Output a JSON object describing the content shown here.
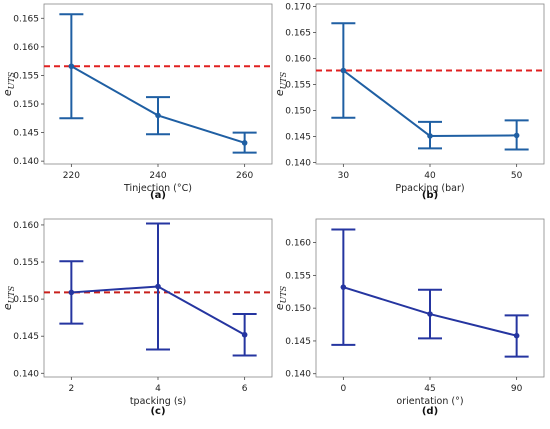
{
  "chart_data": [
    {
      "type": "line",
      "panel_label": "(a)",
      "xlabel": "Tinjection (°C)",
      "ylabel_main": "e",
      "ylabel_sub": "UTS",
      "categories": [
        "220",
        "240",
        "260"
      ],
      "values": [
        0.1566,
        0.148,
        0.1432
      ],
      "err_low": [
        0.1475,
        0.1447,
        0.1415
      ],
      "err_high": [
        0.1657,
        0.1512,
        0.145
      ],
      "ylim": [
        0.1395,
        0.1675
      ],
      "yticks": [
        "0.140",
        "0.145",
        "0.150",
        "0.155",
        "0.160",
        "0.165"
      ],
      "reference_line": 0.1566,
      "color": "#1f5fa3",
      "ref_color": "#e02020",
      "grid": false
    },
    {
      "type": "line",
      "panel_label": "(b)",
      "xlabel": "Ppacking (bar)",
      "ylabel_main": "e",
      "ylabel_sub": "UTS",
      "categories": [
        "30",
        "40",
        "50"
      ],
      "values": [
        0.1577,
        0.1451,
        0.1452
      ],
      "err_low": [
        0.1486,
        0.1427,
        0.1425
      ],
      "err_high": [
        0.1668,
        0.1478,
        0.1481
      ],
      "ylim": [
        0.1397,
        0.1705
      ],
      "yticks": [
        "0.140",
        "0.145",
        "0.150",
        "0.155",
        "0.160",
        "0.165",
        "0.170"
      ],
      "reference_line": 0.1577,
      "color": "#1f5fa3",
      "ref_color": "#e02020",
      "grid": false
    },
    {
      "type": "line",
      "panel_label": "(c)",
      "xlabel": "tpacking (s)",
      "ylabel_main": "e",
      "ylabel_sub": "UTS",
      "categories": [
        "2",
        "4",
        "6"
      ],
      "values": [
        0.1509,
        0.1517,
        0.1452
      ],
      "err_low": [
        0.1467,
        0.1432,
        0.1424
      ],
      "err_high": [
        0.1551,
        0.1602,
        0.148
      ],
      "ylim": [
        0.1395,
        0.1608
      ],
      "yticks": [
        "0.140",
        "0.145",
        "0.150",
        "0.155",
        "0.160"
      ],
      "reference_line": 0.1509,
      "color": "#2535a0",
      "ref_color": "#c8201c",
      "grid": false
    },
    {
      "type": "line",
      "panel_label": "(d)",
      "xlabel": "orientation (°)",
      "ylabel_main": "e",
      "ylabel_sub": "UTS",
      "categories": [
        "0",
        "45",
        "90"
      ],
      "values": [
        0.1532,
        0.1491,
        0.1458
      ],
      "err_low": [
        0.1444,
        0.1454,
        0.1426
      ],
      "err_high": [
        0.162,
        0.1528,
        0.1489
      ],
      "ylim": [
        0.1395,
        0.1636
      ],
      "yticks": [
        "0.140",
        "0.145",
        "0.150",
        "0.155",
        "0.160"
      ],
      "reference_line": null,
      "color": "#2535a0",
      "ref_color": "#c8201c",
      "grid": false
    }
  ]
}
